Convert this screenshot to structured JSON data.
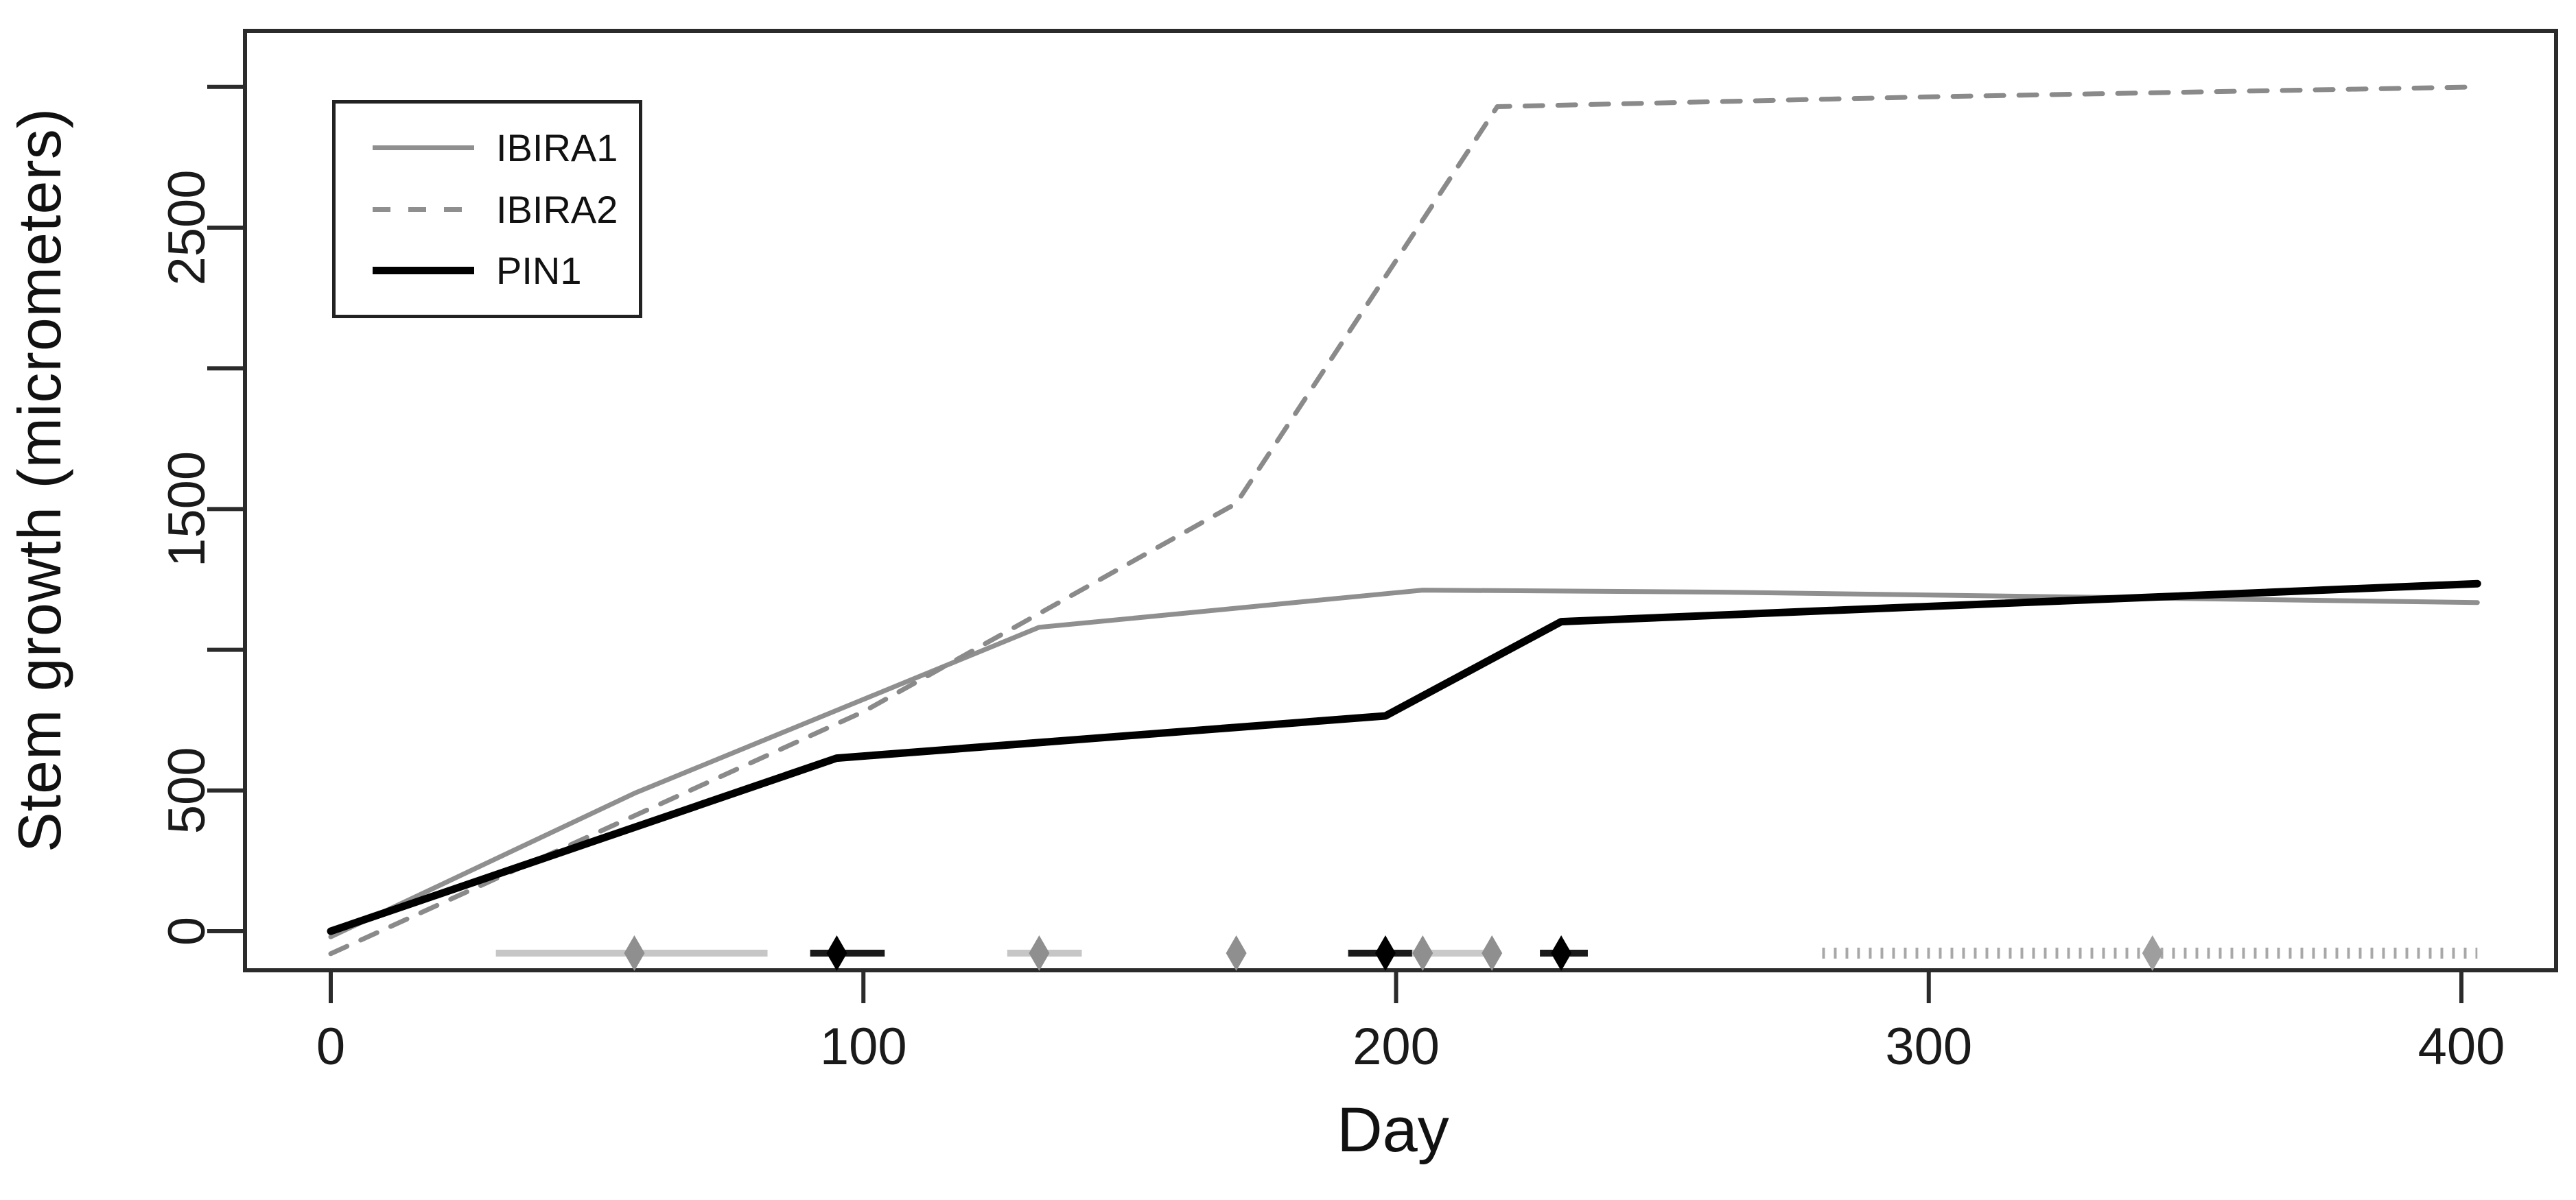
{
  "chart_data": {
    "type": "line",
    "title": "",
    "xlabel": "Day",
    "ylabel": "Stem growth (micrometers)",
    "xlim": [
      -16,
      418
    ],
    "ylim": [
      -139,
      3199
    ],
    "grid": false,
    "legend_position": "top-left",
    "axis_color": "#2b2b2b",
    "background": "#ffffff",
    "x_ticks": [
      {
        "v": 0,
        "label": "0"
      },
      {
        "v": 100,
        "label": "100"
      },
      {
        "v": 200,
        "label": "200"
      },
      {
        "v": 300,
        "label": "300"
      },
      {
        "v": 400,
        "label": "400"
      }
    ],
    "y_ticks": [
      {
        "v": 0,
        "label": "0"
      },
      {
        "v": 500,
        "label": "500"
      },
      {
        "v": 1000,
        "label": ""
      },
      {
        "v": 1500,
        "label": "1500"
      },
      {
        "v": 2000,
        "label": ""
      },
      {
        "v": 2500,
        "label": "2500"
      },
      {
        "v": 3000,
        "label": ""
      }
    ],
    "series": [
      {
        "name": "IBIRA1",
        "color": "#8f8f8f",
        "dash": "solid",
        "width": 7,
        "points": [
          [
            0,
            -20
          ],
          [
            57,
            490
          ],
          [
            133,
            1080
          ],
          [
            205,
            1212
          ],
          [
            260,
            1205
          ],
          [
            403,
            1168
          ]
        ]
      },
      {
        "name": "IBIRA2",
        "color": "#8a8a8a",
        "dash": "dashed",
        "width": 7,
        "points": [
          [
            0,
            -80
          ],
          [
            100,
            780
          ],
          [
            170,
            1520
          ],
          [
            219,
            2930
          ],
          [
            300,
            2965
          ],
          [
            403,
            3000
          ]
        ]
      },
      {
        "name": "PIN1",
        "color": "#000000",
        "dash": "solid",
        "width": 11,
        "points": [
          [
            0,
            0
          ],
          [
            95,
            615
          ],
          [
            198,
            765
          ],
          [
            231,
            1100
          ],
          [
            403,
            1235
          ]
        ]
      }
    ],
    "event_markers": {
      "y_value": -78,
      "items": [
        {
          "color": "#8f8f8f",
          "bar": [
            31,
            82
          ],
          "bar_color": "#c6c6c6",
          "bar_style": "solid",
          "diamonds": [
            57
          ]
        },
        {
          "color": "#8f8f8f",
          "bar": [
            127,
            141
          ],
          "bar_color": "#c6c6c6",
          "bar_style": "solid",
          "diamonds": [
            133
          ]
        },
        {
          "color": "#8f8f8f",
          "bar": null,
          "bar_color": "#c6c6c6",
          "bar_style": "solid",
          "diamonds": [
            170
          ]
        },
        {
          "color": "#8f8f8f",
          "bar": [
            192,
            218
          ],
          "bar_color": "#c9c9c9",
          "bar_style": "solid",
          "diamonds": [
            205,
            218
          ]
        },
        {
          "color": "#000000",
          "bar": [
            90,
            104
          ],
          "bar_color": "#1a1a1a",
          "bar_style": "solid",
          "diamonds": [
            95
          ]
        },
        {
          "color": "#000000",
          "bar": [
            191,
            203
          ],
          "bar_color": "#1a1a1a",
          "bar_style": "solid",
          "diamonds": [
            198
          ]
        },
        {
          "color": "#000000",
          "bar": [
            227,
            236
          ],
          "bar_color": "#1a1a1a",
          "bar_style": "solid",
          "diamonds": [
            231
          ]
        },
        {
          "color": "#9e9e9e",
          "bar": [
            280,
            403
          ],
          "bar_color": "#a8a8a8",
          "bar_style": "dotted",
          "diamonds": [
            342
          ]
        }
      ]
    }
  }
}
